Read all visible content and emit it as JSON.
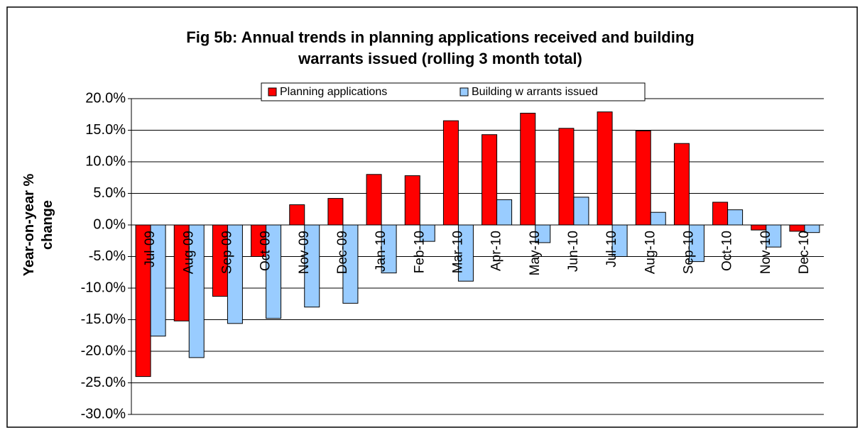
{
  "chart_data": {
    "type": "bar",
    "title": "Fig 5b: Annual trends in planning applications received and building warrants issued (rolling 3 month total)",
    "y_label": "Year-on-year % change",
    "categories": [
      "Jul-09",
      "Aug-09",
      "Sep-09",
      "Oct-09",
      "Nov-09",
      "Dec-09",
      "Jan-10",
      "Feb-10",
      "Mar-10",
      "Apr-10",
      "May-10",
      "Jun-10",
      "Jul-10",
      "Aug-10",
      "Sep-10",
      "Oct-10",
      "Nov-10",
      "Dec-10"
    ],
    "series": [
      {
        "name": "Planning applications",
        "color": "#ff0000",
        "values": [
          -24.0,
          -15.2,
          -11.3,
          -5.0,
          3.2,
          4.2,
          8.0,
          7.8,
          16.5,
          14.3,
          17.7,
          15.3,
          17.9,
          14.9,
          12.9,
          3.6,
          -0.8,
          -1.0
        ]
      },
      {
        "name": "Building w arrants issued",
        "color": "#99ccff",
        "values": [
          -17.6,
          -21.0,
          -15.6,
          -14.8,
          -13.0,
          -12.4,
          -7.6,
          -2.6,
          -8.9,
          4.0,
          -2.8,
          4.4,
          -5.0,
          2.0,
          -5.8,
          2.4,
          -3.5,
          -1.2
        ]
      }
    ],
    "ylim": [
      -30,
      20
    ],
    "yticks": [
      {
        "value": -30,
        "label": "-30.0%"
      },
      {
        "value": -25,
        "label": "-25.0%"
      },
      {
        "value": -20,
        "label": "-20.0%"
      },
      {
        "value": -15,
        "label": "-15.0%"
      },
      {
        "value": -10,
        "label": "-10.0%"
      },
      {
        "value": -5,
        "label": "-5.0%"
      },
      {
        "value": 0,
        "label": "0.0%"
      },
      {
        "value": 5,
        "label": "5.0%"
      },
      {
        "value": 10,
        "label": "10.0%"
      },
      {
        "value": 15,
        "label": "15.0%"
      },
      {
        "value": 20,
        "label": "20.0%"
      }
    ],
    "grid": true,
    "legend": "top"
  }
}
